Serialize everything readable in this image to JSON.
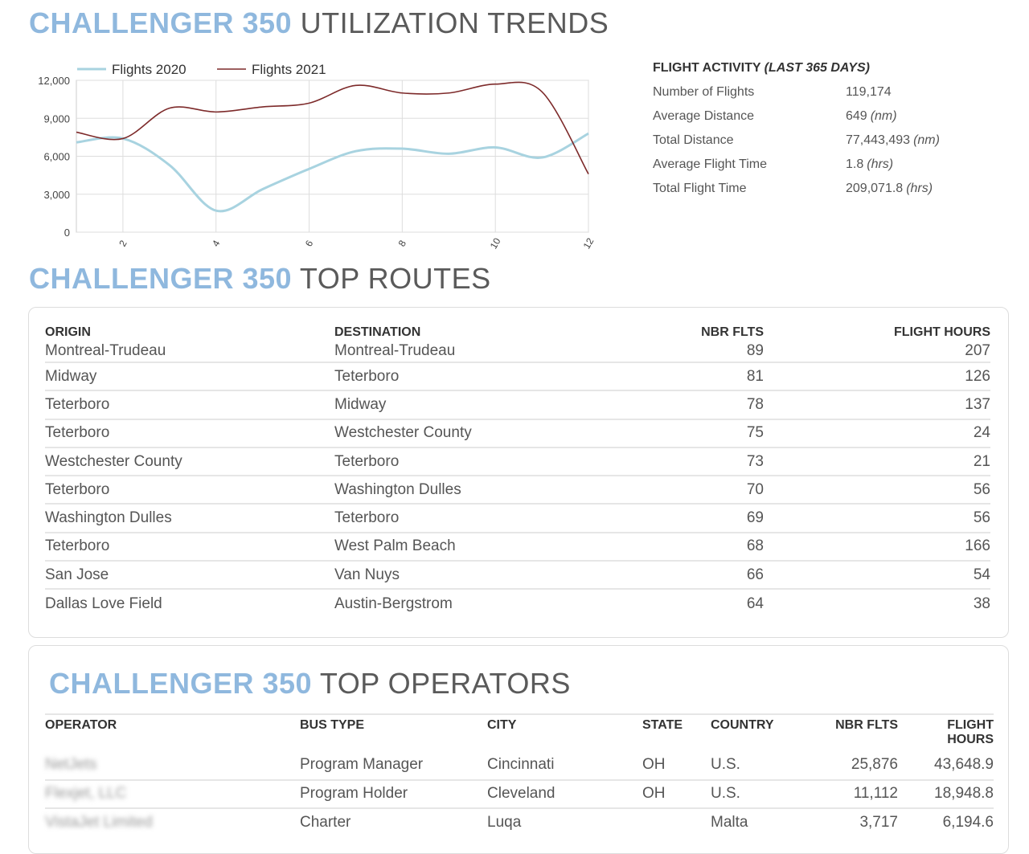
{
  "titles": {
    "utilization": {
      "brand": "CHALLENGER 350",
      "rest": "UTILIZATION TRENDS"
    },
    "routes": {
      "brand": "CHALLENGER 350",
      "rest": "TOP ROUTES"
    },
    "operators": {
      "brand": "CHALLENGER 350",
      "rest": "TOP OPERATORS"
    }
  },
  "chart_data": {
    "type": "line",
    "x": [
      1,
      2,
      3,
      4,
      5,
      6,
      7,
      8,
      9,
      10,
      11,
      12
    ],
    "series": [
      {
        "name": "Flights 2020",
        "color": "#a8d3e0",
        "values": [
          7100,
          7400,
          5300,
          1700,
          3400,
          5000,
          6400,
          6600,
          6200,
          6700,
          5900,
          7800
        ]
      },
      {
        "name": "Flights 2021",
        "color": "#7d2a2a",
        "values": [
          7900,
          7400,
          9800,
          9500,
          9900,
          10200,
          11600,
          11000,
          11000,
          11700,
          11100,
          4600
        ]
      }
    ],
    "xticks": [
      2,
      4,
      6,
      8,
      10,
      12
    ],
    "yticks": [
      "0",
      "3,000",
      "6,000",
      "9,000",
      "12,000"
    ],
    "ytick_values": [
      0,
      3000,
      6000,
      9000,
      12000
    ],
    "xlim": [
      1,
      12
    ],
    "ylim": [
      0,
      12000
    ],
    "grid": true,
    "legend_position": "top"
  },
  "activity": {
    "heading": "FLIGHT ACTIVITY",
    "period": "(LAST 365 DAYS)",
    "rows": [
      {
        "label": "Number of Flights",
        "value": "119,174",
        "unit": ""
      },
      {
        "label": "Average Distance",
        "value": "649",
        "unit": "(nm)"
      },
      {
        "label": "Total Distance",
        "value": "77,443,493",
        "unit": "(nm)"
      },
      {
        "label": "Average Flight Time",
        "value": "1.8",
        "unit": "(hrs)"
      },
      {
        "label": "Total Flight Time",
        "value": "209,071.8",
        "unit": "(hrs)"
      }
    ]
  },
  "routes": {
    "headers": {
      "origin": "ORIGIN",
      "destination": "DESTINATION",
      "flights": "NBR FLTS",
      "hours": "FLIGHT HOURS"
    },
    "rows": [
      {
        "origin": "Montreal-Trudeau",
        "destination": "Montreal-Trudeau",
        "flights": "89",
        "hours": "207"
      },
      {
        "origin": "Midway",
        "destination": "Teterboro",
        "flights": "81",
        "hours": "126"
      },
      {
        "origin": "Teterboro",
        "destination": "Midway",
        "flights": "78",
        "hours": "137"
      },
      {
        "origin": "Teterboro",
        "destination": "Westchester County",
        "flights": "75",
        "hours": "24"
      },
      {
        "origin": "Westchester County",
        "destination": "Teterboro",
        "flights": "73",
        "hours": "21"
      },
      {
        "origin": "Teterboro",
        "destination": "Washington Dulles",
        "flights": "70",
        "hours": "56"
      },
      {
        "origin": "Washington Dulles",
        "destination": "Teterboro",
        "flights": "69",
        "hours": "56"
      },
      {
        "origin": "Teterboro",
        "destination": "West Palm Beach",
        "flights": "68",
        "hours": "166"
      },
      {
        "origin": "San Jose",
        "destination": "Van Nuys",
        "flights": "66",
        "hours": "54"
      },
      {
        "origin": "Dallas Love Field",
        "destination": "Austin-Bergstrom",
        "flights": "64",
        "hours": "38"
      }
    ]
  },
  "operators": {
    "headers": {
      "operator": "OPERATOR",
      "bus_type": "BUS TYPE",
      "city": "CITY",
      "state": "STATE",
      "country": "COUNTRY",
      "flights": "NBR FLTS",
      "hours_line1": "FLIGHT",
      "hours_line2": "HOURS"
    },
    "rows": [
      {
        "operator": "NetJets",
        "bus_type": "Program Manager",
        "city": "Cincinnati",
        "state": "OH",
        "country": "U.S.",
        "flights": "25,876",
        "hours": "43,648.9"
      },
      {
        "operator": "Flexjet, LLC",
        "bus_type": "Program Holder",
        "city": "Cleveland",
        "state": "OH",
        "country": "U.S.",
        "flights": "11,112",
        "hours": "18,948.8"
      },
      {
        "operator": "VistaJet Limited",
        "bus_type": "Charter",
        "city": "Luqa",
        "state": "",
        "country": "Malta",
        "flights": "3,717",
        "hours": "6,194.6"
      }
    ]
  }
}
